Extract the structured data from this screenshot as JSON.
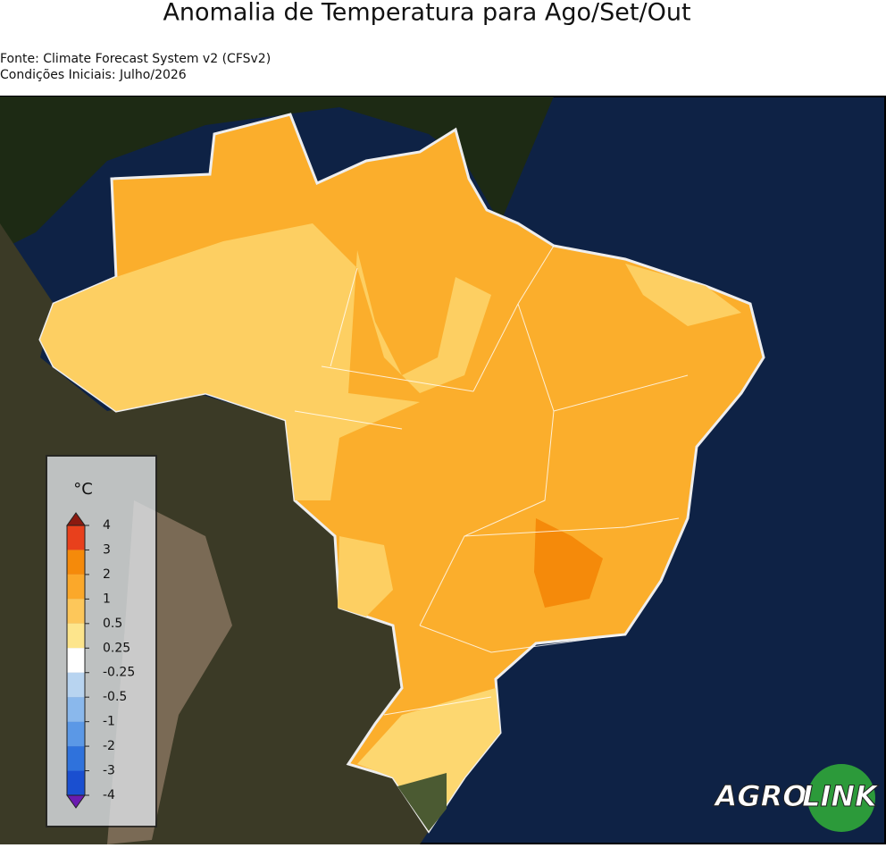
{
  "header": {
    "title": "Anomalia de Temperatura para Ago/Set/Out",
    "source": "Fonte: Climate Forecast System v2 (CFSv2)",
    "initial_conditions": "Condições Iniciais: Julho/2026"
  },
  "colorbar": {
    "unit": "°C",
    "ticks": [
      4,
      3,
      2,
      1,
      0.5,
      0.25,
      -0.25,
      -0.5,
      -1,
      -2,
      -3,
      -4
    ],
    "colors": [
      "#e8401c",
      "#f58a0a",
      "#fba82a",
      "#fdc75a",
      "#fde58c",
      "#ffffff",
      "#b8d4f0",
      "#8ab8ec",
      "#5b98e6",
      "#2f72dc",
      "#1a4fd0"
    ],
    "over_color": "#8b1a10",
    "under_color": "#6a1bb0"
  },
  "logo": {
    "part1": "AGRO",
    "part2": "LINK"
  }
}
